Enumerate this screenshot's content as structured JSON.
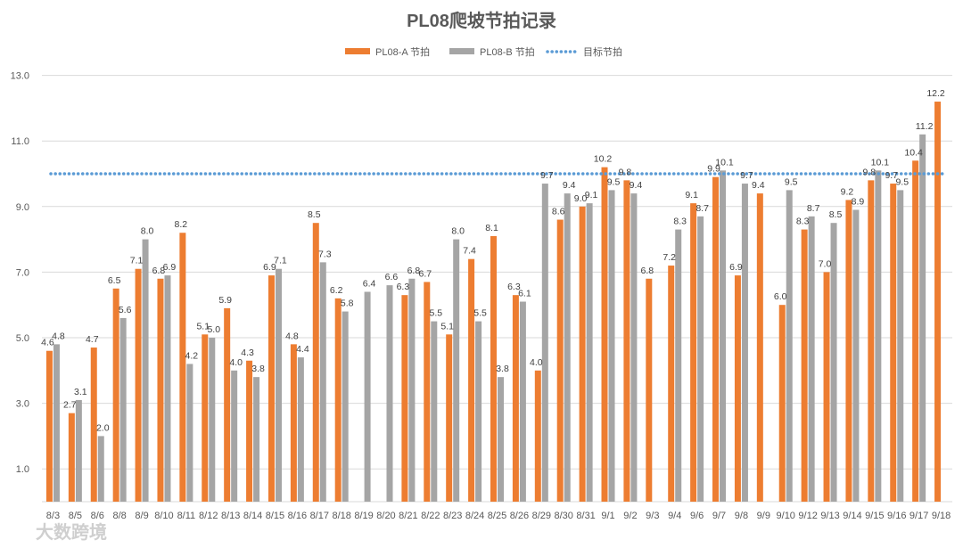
{
  "chart_data": {
    "type": "bar",
    "title": "PL08爬坡节拍记录",
    "categories": [
      "8/3",
      "8/5",
      "8/6",
      "8/8",
      "8/9",
      "8/10",
      "8/11",
      "8/12",
      "8/13",
      "8/14",
      "8/15",
      "8/16",
      "8/17",
      "8/18",
      "8/19",
      "8/20",
      "8/21",
      "8/22",
      "8/23",
      "8/24",
      "8/25",
      "8/26",
      "8/29",
      "8/30",
      "8/31",
      "9/1",
      "9/2",
      "9/3",
      "9/4",
      "9/6",
      "9/7",
      "9/8",
      "9/9",
      "9/10",
      "9/12",
      "9/13",
      "9/14",
      "9/15",
      "9/16",
      "9/17",
      "9/18"
    ],
    "series": [
      {
        "name": "PL08-A 节拍",
        "color": "#ED7D31",
        "values": [
          4.6,
          2.7,
          4.7,
          6.5,
          7.1,
          6.8,
          8.2,
          5.1,
          5.9,
          4.3,
          6.9,
          4.8,
          8.5,
          6.2,
          null,
          null,
          6.3,
          6.7,
          5.1,
          7.4,
          8.1,
          6.3,
          4.0,
          8.6,
          9.0,
          10.2,
          9.8,
          6.8,
          7.2,
          9.1,
          9.9,
          6.9,
          9.4,
          6.0,
          8.3,
          7.0,
          9.2,
          9.8,
          9.7,
          10.4,
          12.2
        ],
        "labels": [
          "4.6",
          "2.7",
          "4.7",
          "6.5",
          "7.1",
          "6.8",
          "8.2",
          "5.1",
          "5.9",
          "4.3",
          "6.9",
          "4.8",
          "8.5",
          "6.2",
          "",
          "",
          "6.3",
          "6.7",
          "5.1",
          "7.4",
          "8.1",
          "6.3",
          "4.0",
          "8.6",
          "9.0",
          "10.2",
          "9.8",
          "6.8",
          "7.2",
          "9.1",
          "9.9",
          "6.9",
          "9.4",
          "6.0",
          "8.3",
          "7.0",
          "9.2",
          "9.8",
          "9.7",
          "10.4",
          "12.2"
        ]
      },
      {
        "name": "PL08-B 节拍",
        "color": "#A5A5A5",
        "values": [
          4.8,
          3.1,
          2.0,
          5.6,
          8.0,
          6.9,
          4.2,
          5.0,
          4.0,
          3.8,
          7.1,
          4.4,
          7.3,
          5.8,
          6.4,
          6.6,
          6.8,
          5.5,
          8.0,
          5.5,
          3.8,
          6.1,
          9.7,
          9.4,
          9.1,
          9.5,
          9.4,
          null,
          8.3,
          8.7,
          10.1,
          9.7,
          null,
          9.5,
          8.7,
          8.5,
          8.9,
          10.1,
          9.5,
          11.2,
          null
        ],
        "labels": [
          "4.8",
          "3.1",
          "2.0",
          "5.6",
          "8.0",
          "6.9",
          "4.2",
          "5.0",
          "4.0",
          "3.8",
          "7.1",
          "4.4",
          "7.3",
          "5.8",
          "6.4",
          "6.6",
          "6.8",
          "5.5",
          "8.0",
          "5.5",
          "3.8",
          "6.1",
          "9.7",
          "9.4",
          "9.1",
          "9.5",
          "9.4",
          "",
          "8.3",
          "8.7",
          "10.1",
          "9.7",
          "",
          "9.5",
          "8.7",
          "8.5",
          "8.9",
          "10.1",
          "9.5",
          "11.2",
          ""
        ]
      }
    ],
    "target": {
      "name": "目标节拍",
      "value": 10.0,
      "color": "#5B9BD5"
    },
    "yticks": [
      "1.0",
      "3.0",
      "5.0",
      "7.0",
      "9.0",
      "11.0",
      "13.0"
    ],
    "ylim": [
      0,
      13
    ],
    "legend_position": "top-center",
    "grid": true
  },
  "watermark": "大数跨境"
}
